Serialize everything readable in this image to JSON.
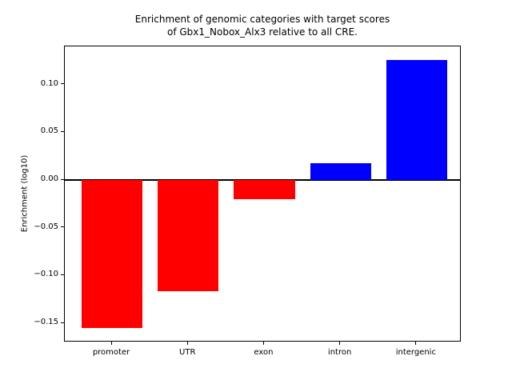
{
  "title": {
    "line1": "Enrichment of genomic categories with target scores",
    "line2": "of Gbx1_Nobox_Alx3 relative to all CRE."
  },
  "chart_data": {
    "type": "bar",
    "title": "Enrichment of genomic categories with target scores\nof Gbx1_Nobox_Alx3 relative to all CRE.",
    "categories": [
      "promoter",
      "UTR",
      "exon",
      "intron",
      "intergenic"
    ],
    "values": [
      -0.155,
      -0.116,
      -0.02,
      0.018,
      0.126
    ],
    "xlabel": "",
    "ylabel": "Enrichment (log10)",
    "ylim": [
      -0.17,
      0.14
    ],
    "xlim": [
      -0.62,
      4.59
    ],
    "bar_width": 0.8,
    "yticks": [
      0.1,
      0.05,
      0.0,
      -0.05,
      -0.1,
      -0.15
    ],
    "ytick_labels": [
      "0.10",
      "0.05",
      "0.00",
      "−0.05",
      "−0.10",
      "−0.15"
    ],
    "colors": {
      "positive_bar": "#0000ff",
      "negative_bar": "#ff0000",
      "axis": "#000000",
      "background": "#ffffff"
    },
    "zero_line": true,
    "grid": false,
    "legend": null
  }
}
